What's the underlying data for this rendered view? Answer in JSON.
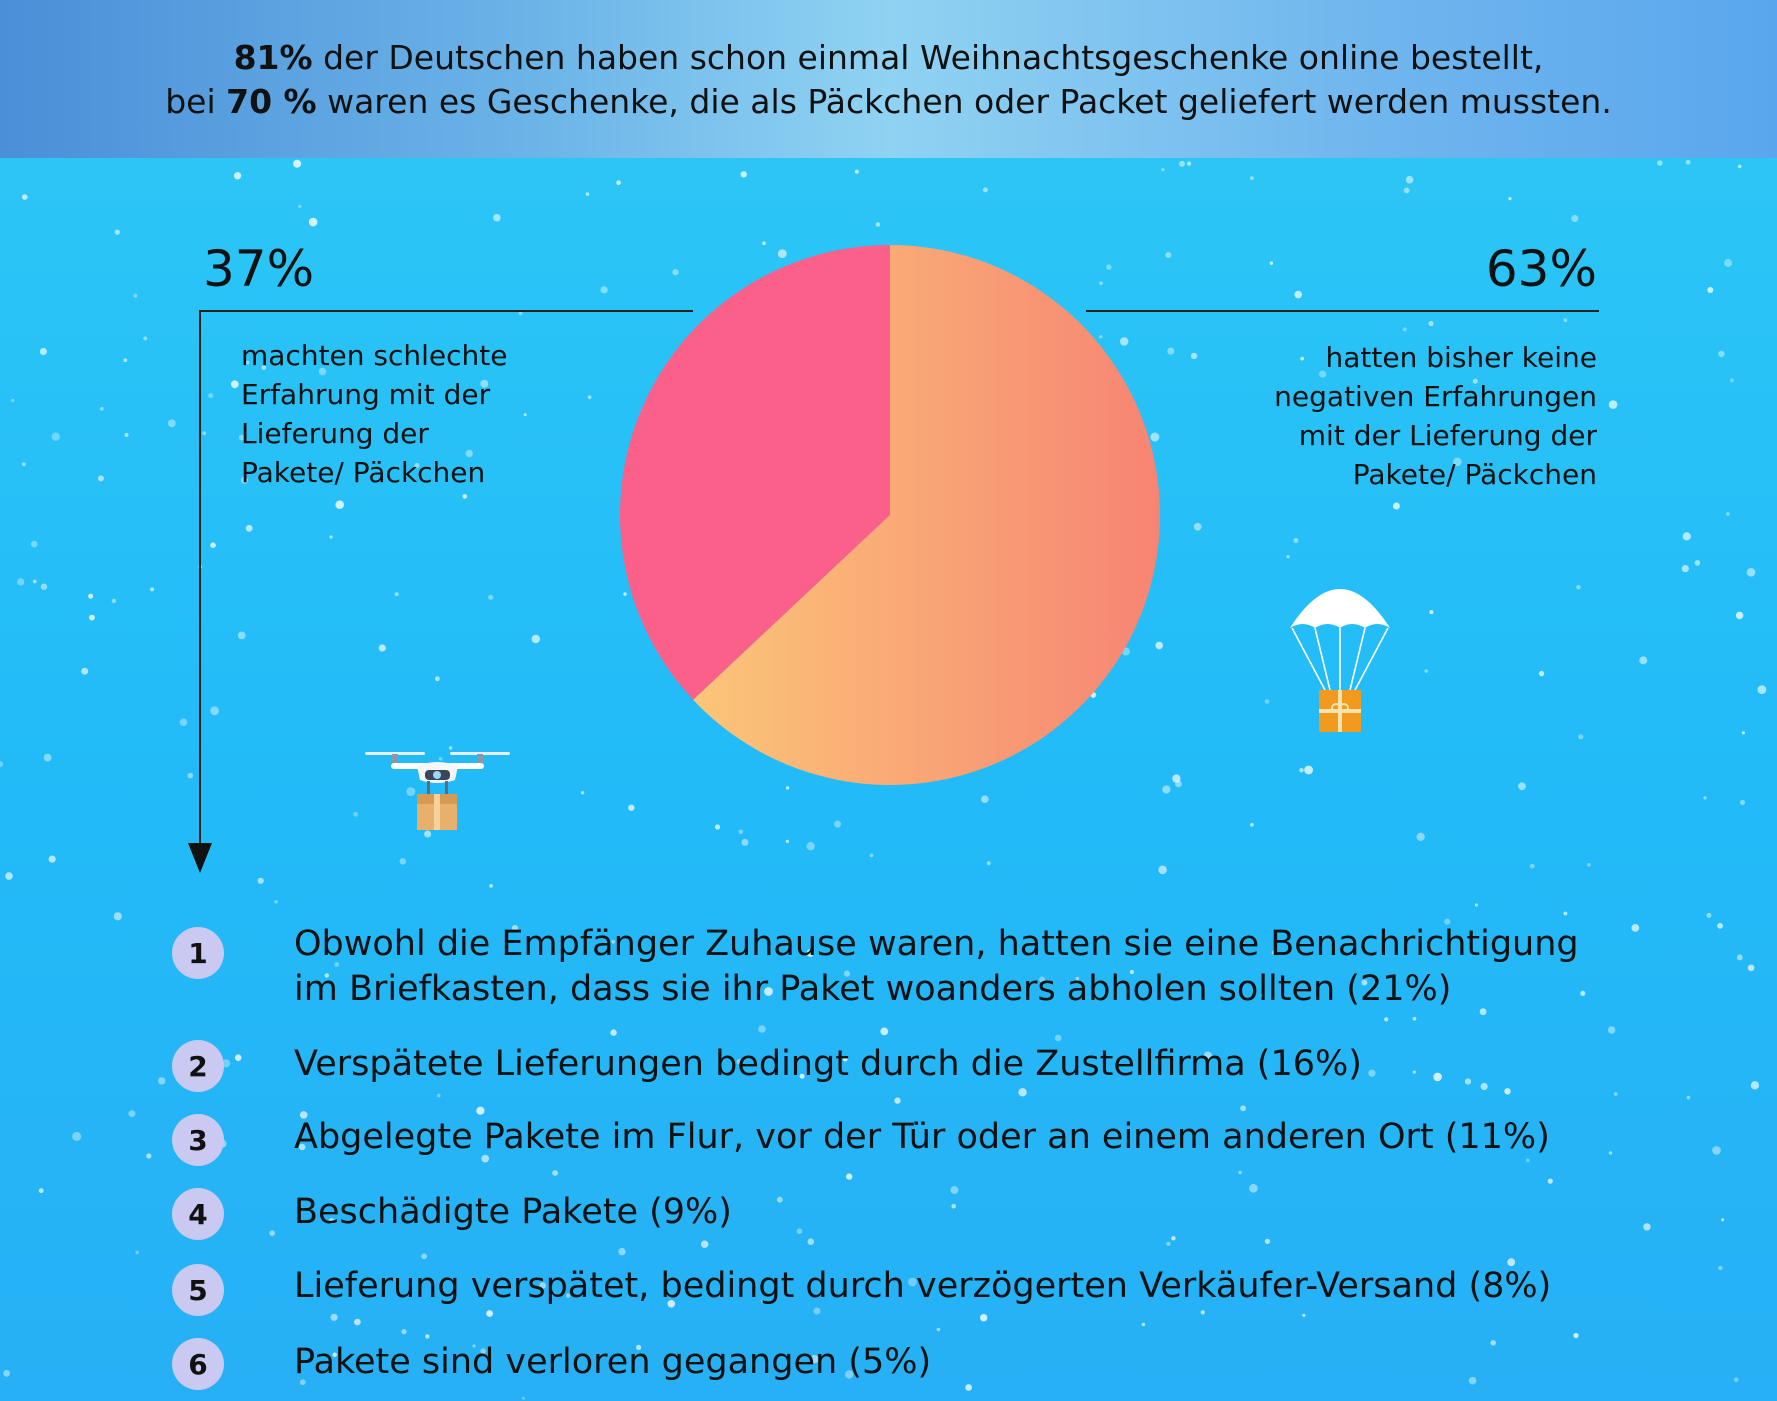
{
  "header": {
    "line1_bold": "81%",
    "line1_rest": " der Deutschen haben schon einmal Weihnachtsgeschenke online bestellt,",
    "line2_pre": "bei ",
    "line2_bold": "70 %",
    "line2_rest": " waren es Geschenke, die als Päckchen oder Packet geliefert werden mussten."
  },
  "left": {
    "percent": "37%",
    "description_lines": [
      "machten schlechte",
      "Erfahrung mit der",
      "Lieferung der",
      "Pakete/ Päckchen"
    ]
  },
  "right": {
    "percent": "63%",
    "description_lines": [
      "hatten bisher keine",
      "negativen Erfahrungen",
      "mit der Lieferung der",
      "Pakete/ Päckchen"
    ]
  },
  "list": [
    {
      "number": "1",
      "lines": [
        "Obwohl die Empfänger Zuhause waren, hatten sie eine Benachrichtigung",
        "im Briefkasten, dass sie ihr Paket woanders abholen sollten (21%)"
      ]
    },
    {
      "number": "2",
      "lines": [
        "Verspätete Lieferungen bedingt durch die Zustellfirma (16%)"
      ]
    },
    {
      "number": "3",
      "lines": [
        "Abgelegte Pakete im Flur, vor der Tür oder an einem anderen Ort (11%)"
      ]
    },
    {
      "number": "4",
      "lines": [
        "Beschädigte Pakete (9%)"
      ]
    },
    {
      "number": "5",
      "lines": [
        "Lieferung verspätet, bedingt durch verzögerten Verkäufer-Versand (8%)"
      ]
    },
    {
      "number": "6",
      "lines": [
        "Pakete sind verloren gegangen (5%)"
      ]
    }
  ],
  "icons": {
    "left": "drone-icon",
    "right": "parachute-package-icon"
  },
  "colors": {
    "slice_negative": "#fb608a",
    "slice_positive_start": "#fbc678",
    "slice_positive_end": "#f78473",
    "background": "#2fc8f6",
    "badge": "#c9c9f2"
  },
  "chart_data": {
    "type": "pie",
    "slices": [
      {
        "label": "machten schlechte Erfahrung mit der Lieferung der Pakete/ Päckchen",
        "value": 37,
        "color": "#fb608a"
      },
      {
        "label": "hatten bisher keine negativen Erfahrungen mit der Lieferung der Pakete/ Päckchen",
        "value": 63,
        "color": "#f9a077"
      }
    ],
    "start_angle": "12 o'clock, counter-clockwise for 37%",
    "legend": "none",
    "title": ""
  }
}
